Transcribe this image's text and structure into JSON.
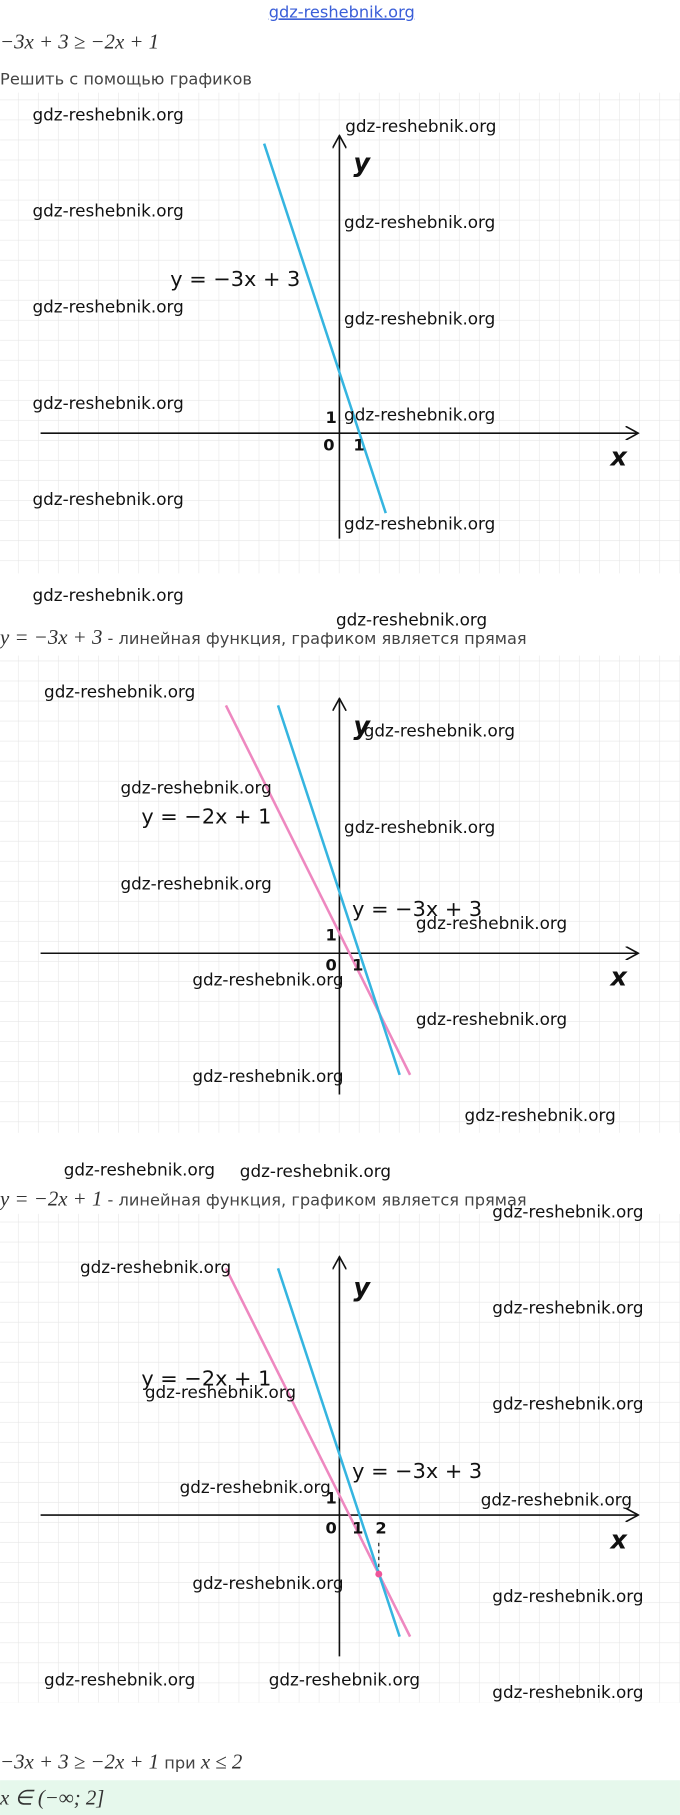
{
  "header": {
    "site": "gdz-reshebnik.org"
  },
  "problem": "−3x + 3 ≥ −2x + 1",
  "subtitle": "Решить с помощью графиков",
  "figures": [
    {
      "y_axis": "y",
      "x_axis": "x",
      "origin": "0",
      "one_y": "1",
      "one_x": "1",
      "line_blue": "y = −3x + 3",
      "watermarks": [
        "gdz-reshebnik.org",
        "gdz-reshebnik.org",
        "gdz-reshebnik.org",
        "gdz-reshebnik.org",
        "gdz-reshebnik.org",
        "gdz-reshebnik.org",
        "gdz-reshebnik.org",
        "gdz-reshebnik.org",
        "gdz-reshebnik.org",
        "gdz-reshebnik.org",
        "gdz-reshebnik.org",
        "gdz-reshebnik.org"
      ]
    },
    {
      "y_axis": "y",
      "x_axis": "x",
      "origin": "0",
      "one_y": "1",
      "one_x": "1",
      "line_pink": "y = −2x + 1",
      "line_blue": "y = −3x + 3",
      "watermarks": [
        "gdz-reshebnik.org",
        "gdz-reshebnik.org",
        "gdz-reshebnik.org",
        "gdz-reshebnik.org",
        "gdz-reshebnik.org",
        "gdz-reshebnik.org",
        "gdz-reshebnik.org",
        "gdz-reshebnik.org",
        "gdz-reshebnik.org",
        "gdz-reshebnik.org"
      ]
    },
    {
      "y_axis": "y",
      "x_axis": "x",
      "origin": "0",
      "one_y": "1",
      "one_x": "1",
      "two_x": "2",
      "line_pink": "y = −2x + 1",
      "line_blue": "y = −3x + 3",
      "watermarks": [
        "gdz-reshebnik.org",
        "gdz-reshebnik.org",
        "gdz-reshebnik.org",
        "gdz-reshebnik.org",
        "gdz-reshebnik.org",
        "gdz-reshebnik.org",
        "gdz-reshebnik.org",
        "gdz-reshebnik.org",
        "gdz-reshebnik.org",
        "gdz-reshebnik.org",
        "gdz-reshebnik.org",
        "gdz-reshebnik.org",
        "gdz-reshebnik.org",
        "gdz-reshebnik.org"
      ]
    }
  ],
  "captions": [
    {
      "formula": "y = −3x + 3",
      "text": " - линейная функция, графиком является прямая"
    },
    {
      "formula": "y = −2x + 1",
      "text": " - линейная функция, графиком является прямая"
    }
  ],
  "conclusion": {
    "formula": "−3x + 3 ≥ −2x + 1",
    "word": " при ",
    "condition": "x ≤ 2"
  },
  "answer": "x ∈ (−∞; 2]"
}
